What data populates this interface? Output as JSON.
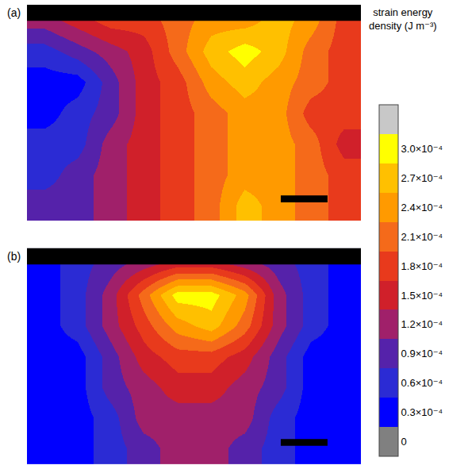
{
  "chart_data": [
    {
      "type": "heatmap",
      "title": "(a)",
      "tick_labels": false,
      "cells": [
        [
          0.00012,
          0.00015,
          0.00018,
          0.00018,
          0.00021,
          0.00024,
          0.00024,
          0.00027,
          0.00024,
          0.00018
        ],
        [
          6e-05,
          9e-05,
          0.00012,
          0.00015,
          0.00021,
          0.00027,
          0.0003,
          0.00027,
          0.00021,
          0.00018
        ],
        [
          3e-05,
          3e-05,
          9e-05,
          0.00015,
          0.00018,
          0.00024,
          0.00027,
          0.00024,
          0.00021,
          0.00018
        ],
        [
          3e-05,
          6e-05,
          9e-05,
          0.00015,
          0.00018,
          0.00021,
          0.00024,
          0.00024,
          0.00018,
          0.00018
        ],
        [
          6e-05,
          6e-05,
          0.00012,
          0.00015,
          0.00018,
          0.00021,
          0.00024,
          0.00024,
          0.00021,
          0.00015
        ],
        [
          6e-05,
          9e-05,
          0.00012,
          0.00015,
          0.00018,
          0.00021,
          0.00024,
          0.00024,
          0.00021,
          0.00018
        ],
        [
          9e-05,
          9e-05,
          0.00012,
          0.00015,
          0.00018,
          0.00021,
          0.00027,
          0.00024,
          0.00021,
          0.00018
        ]
      ]
    },
    {
      "type": "heatmap",
      "title": "(b)",
      "tick_labels": false,
      "cells": [
        [
          3e-05,
          6e-05,
          9e-05,
          0.00012,
          0.00015,
          0.00015,
          0.00012,
          9e-05,
          6e-05,
          3e-05
        ],
        [
          3e-05,
          6e-05,
          0.00012,
          0.00021,
          0.0003,
          0.0003,
          0.00024,
          0.00012,
          6e-05,
          3e-05
        ],
        [
          3e-05,
          6e-05,
          0.00012,
          0.00018,
          0.00024,
          0.00027,
          0.00021,
          0.00012,
          6e-05,
          3e-05
        ],
        [
          3e-05,
          3e-05,
          9e-05,
          0.00015,
          0.00018,
          0.00018,
          0.00015,
          9e-05,
          3e-05,
          3e-05
        ],
        [
          3e-05,
          3e-05,
          9e-05,
          0.00012,
          0.00015,
          0.00015,
          0.00012,
          9e-05,
          3e-05,
          3e-05
        ],
        [
          3e-05,
          3e-05,
          6e-05,
          0.00012,
          0.00012,
          0.00012,
          0.00012,
          6e-05,
          3e-05,
          3e-05
        ],
        [
          3e-05,
          3e-05,
          6e-05,
          9e-05,
          0.00012,
          0.00012,
          9e-05,
          6e-05,
          3e-05,
          3e-05
        ]
      ]
    }
  ],
  "colorbar": {
    "title": "strain energy density (J m⁻³)",
    "range": [
      -1.5e-05,
      0.000345
    ],
    "colors": [
      "#808080",
      "#0000ff",
      "#2b2bd4",
      "#5522aa",
      "#a0206a",
      "#d0202a",
      "#e83a1c",
      "#f56a1a",
      "#ff9a00",
      "#ffc000",
      "#ffff00",
      "#c8c8c8"
    ],
    "ticks": [
      0,
      {
        "value": 3e-05,
        "label": "0.3×10⁻⁴"
      },
      {
        "value": 6e-05,
        "label": "0.6×10⁻⁴"
      },
      {
        "value": 9e-05,
        "label": "0.9×10⁻⁴"
      },
      {
        "value": 0.00012,
        "label": "1.2×10⁻⁴"
      },
      {
        "value": 0.00015,
        "label": "1.5×10⁻⁴"
      },
      {
        "value": 0.00018,
        "label": "1.8×10⁻⁴"
      },
      {
        "value": 0.00021,
        "label": "2.1×10⁻⁴"
      },
      {
        "value": 0.00024,
        "label": "2.4×10⁻⁴"
      },
      {
        "value": 0.00027,
        "label": "2.7×10⁻⁴"
      },
      {
        "value": 0.0003,
        "label": "3.0×10⁻⁴"
      }
    ]
  }
}
